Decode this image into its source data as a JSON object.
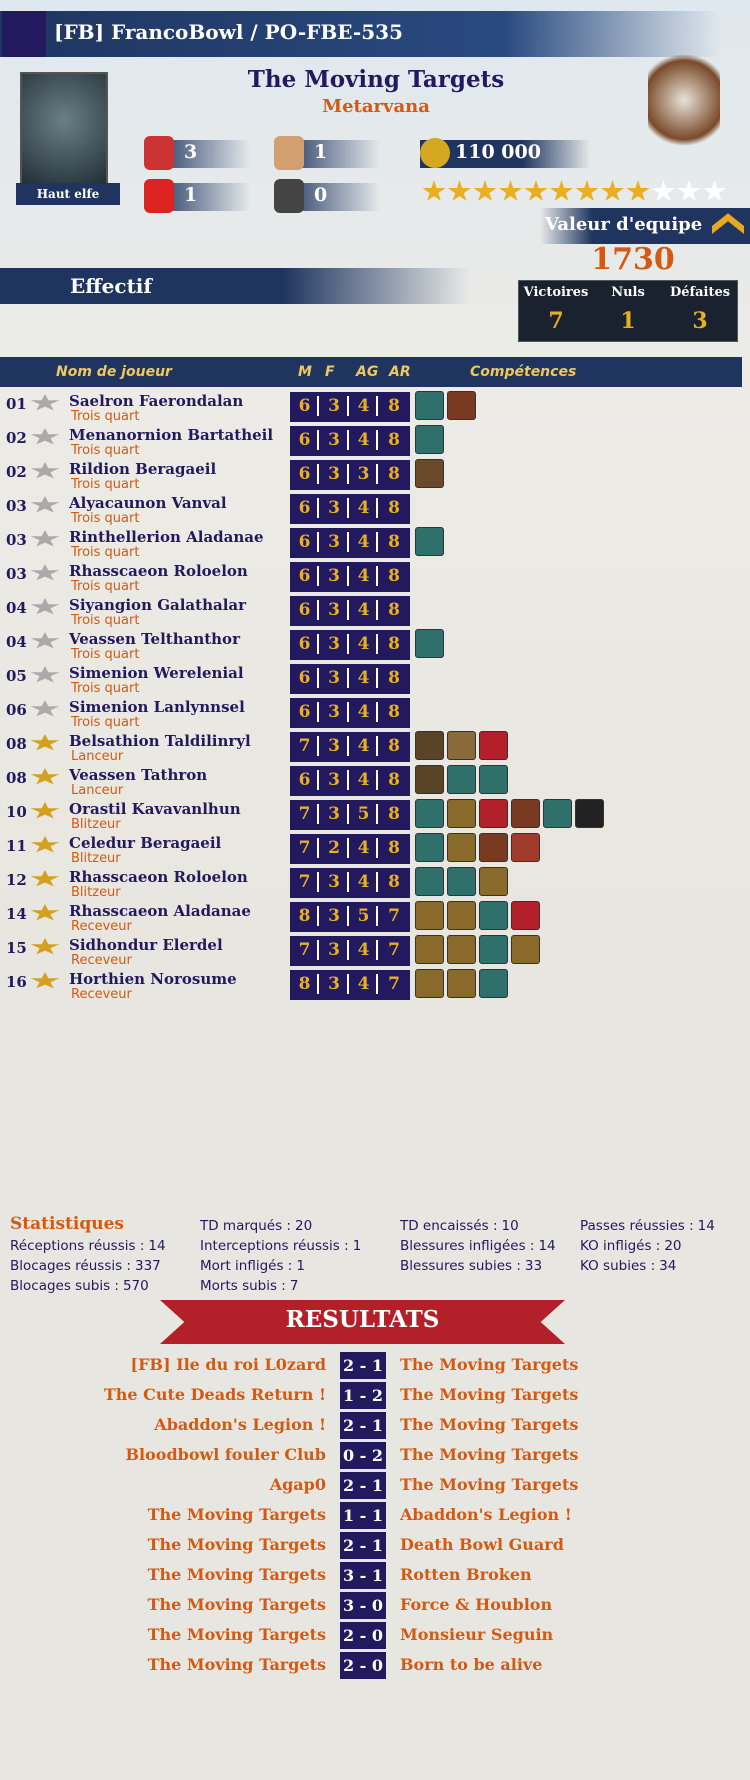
{
  "header": {
    "title": "[FB] FrancoBowl / PO-FBE-535"
  },
  "team": {
    "name": "The Moving Targets",
    "race": "Metarvana",
    "race_badge": "Haut elfe",
    "rerolls": 3,
    "cheerleaders": 1,
    "apothecary": 1,
    "assistants": 0,
    "treasury": "110 000",
    "stars": {
      "filled": 9,
      "total": 12
    },
    "value_label": "Valeur d'equipe",
    "value": 1730,
    "roster_label": "Effectif",
    "record": {
      "wins_label": "Victoires",
      "wins": 7,
      "draws_label": "Nuls",
      "draws": 1,
      "losses_label": "Défaites",
      "losses": 3
    }
  },
  "table": {
    "headers": [
      "Nom de joueur",
      "M",
      "F",
      "AG",
      "AR",
      "Compétences"
    ],
    "players": [
      {
        "number": "01",
        "name": "Saelron Faerondalan",
        "position": "Trois quart",
        "stats": [
          6,
          3,
          4,
          8
        ],
        "skills": [
          "#2f6f6c",
          "#7a3a22"
        ]
      },
      {
        "number": "02",
        "name": "Menanornion Bartatheil",
        "position": "Trois quart",
        "stats": [
          6,
          3,
          4,
          8
        ],
        "skills": [
          "#2f6f6c"
        ]
      },
      {
        "number": "02",
        "name": "Rildion Beragaeil",
        "position": "Trois quart",
        "stats": [
          6,
          3,
          3,
          8
        ],
        "skills": [
          "#6b4a2c"
        ]
      },
      {
        "number": "03",
        "name": "Alyacaunon Vanval",
        "position": "Trois quart",
        "stats": [
          6,
          3,
          4,
          8
        ],
        "skills": []
      },
      {
        "number": "03",
        "name": "Rinthellerion Aladanae",
        "position": "Trois quart",
        "stats": [
          6,
          3,
          4,
          8
        ],
        "skills": [
          "#2f6f6c"
        ]
      },
      {
        "number": "03",
        "name": "Rhasscaeon Roloelon",
        "position": "Trois quart",
        "stats": [
          6,
          3,
          4,
          8
        ],
        "skills": []
      },
      {
        "number": "04",
        "name": "Siyangion Galathalar",
        "position": "Trois quart",
        "stats": [
          6,
          3,
          4,
          8
        ],
        "skills": []
      },
      {
        "number": "04",
        "name": "Veassen Telthanthor",
        "position": "Trois quart",
        "stats": [
          6,
          3,
          4,
          8
        ],
        "skills": [
          "#2f6f6c"
        ]
      },
      {
        "number": "05",
        "name": "Simenion Werelenial",
        "position": "Trois quart",
        "stats": [
          6,
          3,
          4,
          8
        ],
        "skills": []
      },
      {
        "number": "06",
        "name": "Simenion Lanlynnsel",
        "position": "Trois quart",
        "stats": [
          6,
          3,
          4,
          8
        ],
        "skills": []
      },
      {
        "number": "08",
        "name": "Belsathion Taldilinryl",
        "position": "Lanceur",
        "stats": [
          7,
          3,
          4,
          8
        ],
        "skills": [
          "#5a4426",
          "#8a6a3a",
          "#b3202a"
        ]
      },
      {
        "number": "08",
        "name": "Veassen Tathron",
        "position": "Lanceur",
        "stats": [
          6,
          3,
          4,
          8
        ],
        "skills": [
          "#5a4426",
          "#2f6f6c",
          "#2f6f6c"
        ]
      },
      {
        "number": "10",
        "name": "Orastil Kavavanlhun",
        "position": "Blitzeur",
        "stats": [
          7,
          3,
          5,
          8
        ],
        "skills": [
          "#2f6f6c",
          "#8a6a2a",
          "#b3202a",
          "#7a3a22",
          "#2f6f6c",
          "#222"
        ]
      },
      {
        "number": "11",
        "name": "Celedur Beragaeil",
        "position": "Blitzeur",
        "stats": [
          7,
          2,
          4,
          8
        ],
        "skills": [
          "#2f6f6c",
          "#8a6a2a",
          "#7a3a22",
          "#a03a2a"
        ]
      },
      {
        "number": "12",
        "name": "Rhasscaeon Roloelon",
        "position": "Blitzeur",
        "stats": [
          7,
          3,
          4,
          8
        ],
        "skills": [
          "#2f6f6c",
          "#2f6f6c",
          "#8a6a2a"
        ]
      },
      {
        "number": "14",
        "name": "Rhasscaeon Aladanae",
        "position": "Receveur",
        "stats": [
          8,
          3,
          5,
          7
        ],
        "skills": [
          "#8a6a2a",
          "#8a6a2a",
          "#2f6f6c",
          "#b3202a"
        ]
      },
      {
        "number": "15",
        "name": "Sidhondur Elerdel",
        "position": "Receveur",
        "stats": [
          7,
          3,
          4,
          7
        ],
        "skills": [
          "#8a6a2a",
          "#8a6a2a",
          "#2f6f6c",
          "#8a6a2a"
        ]
      },
      {
        "number": "16",
        "name": "Horthien Norosume",
        "position": "Receveur",
        "stats": [
          8,
          3,
          4,
          7
        ],
        "skills": [
          "#8a6a2a",
          "#8a6a2a",
          "#2f6f6c"
        ]
      }
    ]
  },
  "statistics": {
    "title": "Statistiques",
    "columns": [
      [
        {
          "label": "Réceptions réussis :",
          "value": 14
        },
        {
          "label": "Blocages réussis :",
          "value": 337
        },
        {
          "label": "Blocages subis :",
          "value": 570
        }
      ],
      [
        {
          "label": "TD marqués :",
          "value": 20
        },
        {
          "label": "Interceptions réussis :",
          "value": 1
        },
        {
          "label": "Mort infligés :",
          "value": 1
        },
        {
          "label": "Morts subis :",
          "value": 7
        }
      ],
      [
        {
          "label": "TD encaissés :",
          "value": 10
        },
        {
          "label": "Blessures infligées :",
          "value": 14
        },
        {
          "label": "Blessures subies :",
          "value": 33
        }
      ],
      [
        {
          "label": "Passes réussies :",
          "value": 14
        },
        {
          "label": "KO infligés :",
          "value": 20
        },
        {
          "label": "KO subies :",
          "value": 34
        }
      ]
    ]
  },
  "results": {
    "title": "RESULTATS",
    "matches": [
      {
        "home": "[FB] Ile du roi L0zard",
        "score": "2 - 1",
        "away": "The Moving Targets"
      },
      {
        "home": "The Cute Deads Return !",
        "score": "1 - 2",
        "away": "The Moving Targets"
      },
      {
        "home": "Abaddon's Legion !",
        "score": "2 - 1",
        "away": "The Moving Targets"
      },
      {
        "home": "Bloodbowl fouler Club",
        "score": "0 - 2",
        "away": "The Moving Targets"
      },
      {
        "home": "Agap0",
        "score": "2 - 1",
        "away": "The Moving Targets"
      },
      {
        "home": "The Moving Targets",
        "score": "1 - 1",
        "away": "Abaddon's Legion !"
      },
      {
        "home": "The Moving Targets",
        "score": "2 - 1",
        "away": "Death Bowl Guard"
      },
      {
        "home": "The Moving Targets",
        "score": "3 - 1",
        "away": "Rotten Broken"
      },
      {
        "home": "The Moving Targets",
        "score": "3 - 0",
        "away": "Force & Houblon"
      },
      {
        "home": "The Moving Targets",
        "score": "2 - 0",
        "away": "Monsieur Seguin"
      },
      {
        "home": "The Moving Targets",
        "score": "2 - 0",
        "away": "Born to be alive"
      }
    ]
  }
}
